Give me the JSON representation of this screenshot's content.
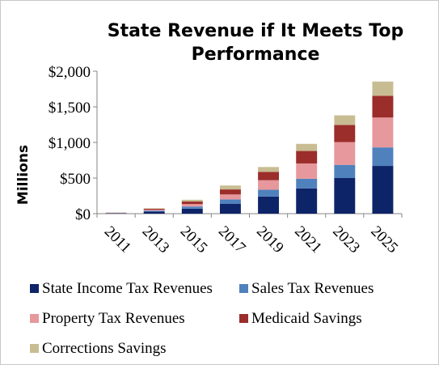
{
  "chart_data": {
    "type": "bar",
    "stacked": true,
    "title": "State Revenue if It Meets Top Performance",
    "title_lines": [
      "State Revenue if It Meets Top",
      "Performance"
    ],
    "xlabel": "",
    "ylabel": "Millions",
    "categories": [
      "2011",
      "2013",
      "2015",
      "2017",
      "2019",
      "2021",
      "2023",
      "2025"
    ],
    "ylim": [
      0,
      2000
    ],
    "yticks": [
      0,
      500,
      1000,
      1500,
      2000
    ],
    "ytick_labels": [
      "$0",
      "$500",
      "$1,000",
      "$1,500",
      "$2,000"
    ],
    "grid": false,
    "legend_position": "bottom",
    "series": [
      {
        "name": "State Income Tax Revenues",
        "color": "#0d2468",
        "values": [
          5,
          30,
          70,
          140,
          240,
          355,
          500,
          670
        ]
      },
      {
        "name": "Sales Tax Revenues",
        "color": "#4f81bd",
        "values": [
          2,
          12,
          30,
          60,
          95,
          135,
          185,
          260
        ]
      },
      {
        "name": "Property Tax Revenues",
        "color": "#e6989c",
        "values": [
          3,
          14,
          35,
          70,
          135,
          215,
          320,
          420
        ]
      },
      {
        "name": "Medicaid Savings",
        "color": "#9b2d2a",
        "values": [
          3,
          13,
          35,
          70,
          115,
          175,
          240,
          305
        ]
      },
      {
        "name": "Corrections Savings",
        "color": "#c8bc92",
        "values": [
          2,
          6,
          25,
          55,
          70,
          100,
          135,
          200
        ]
      }
    ]
  }
}
